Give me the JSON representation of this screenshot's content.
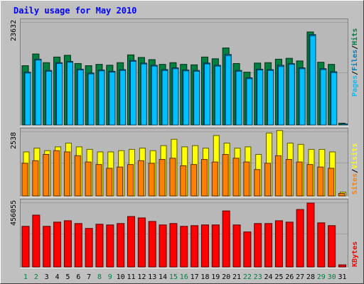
{
  "title": "Daily usage for May 2010",
  "colors": {
    "background": "#c0c0c0",
    "plot_bg": "#b8b8b8",
    "title": "#0000ff",
    "hits": "#008040",
    "files": "#0080c0",
    "pages": "#00c0ff",
    "visits": "#ffff00",
    "sites": "#ff8000",
    "kbytes": "#ff0000",
    "weekend_label": "#008040"
  },
  "chart_data": [
    {
      "type": "bar",
      "panel": "hits-files-pages",
      "categories": [
        "1",
        "2",
        "3",
        "4",
        "5",
        "6",
        "7",
        "8",
        "9",
        "10",
        "11",
        "12",
        "13",
        "14",
        "15",
        "16",
        "17",
        "18",
        "19",
        "20",
        "21",
        "22",
        "23",
        "24",
        "25",
        "26",
        "27",
        "28",
        "29",
        "30",
        "31"
      ],
      "weekend_days": [
        "1",
        "2",
        "8",
        "9",
        "15",
        "16",
        "22",
        "23",
        "29",
        "30"
      ],
      "ymax_label": "23632",
      "ylim": [
        0,
        23632
      ],
      "series": [
        {
          "name": "Hits",
          "values": [
            13700,
            16400,
            14400,
            15700,
            16100,
            14200,
            13700,
            14000,
            13800,
            14400,
            16200,
            15600,
            15100,
            14000,
            14400,
            14000,
            13900,
            15700,
            15300,
            17800,
            14200,
            12200,
            14300,
            14400,
            15200,
            15400,
            14800,
            21500,
            14500,
            14000,
            400
          ]
        },
        {
          "name": "Files",
          "values": [
            12200,
            15200,
            12600,
            14400,
            14700,
            12900,
            12000,
            12700,
            12400,
            12800,
            14900,
            14300,
            13800,
            12800,
            13200,
            12700,
            12600,
            14300,
            13800,
            16300,
            12600,
            10900,
            12900,
            12800,
            13800,
            14200,
            13200,
            20900,
            13000,
            12300,
            250
          ]
        },
        {
          "name": "Pages",
          "values": [
            12000,
            15000,
            12400,
            14200,
            14500,
            12700,
            11800,
            12500,
            12200,
            12600,
            14700,
            14100,
            13600,
            12600,
            13000,
            12500,
            12400,
            14100,
            13600,
            16000,
            12400,
            10700,
            12700,
            12600,
            13500,
            14000,
            13000,
            20600,
            12800,
            12100,
            200
          ]
        }
      ],
      "legend": [
        "Pages",
        "Files",
        "Hits"
      ]
    },
    {
      "type": "bar",
      "panel": "visits-sites",
      "categories": [
        "1",
        "2",
        "3",
        "4",
        "5",
        "6",
        "7",
        "8",
        "9",
        "10",
        "11",
        "12",
        "13",
        "14",
        "15",
        "16",
        "17",
        "18",
        "19",
        "20",
        "21",
        "22",
        "23",
        "24",
        "25",
        "26",
        "27",
        "28",
        "29",
        "30",
        "31"
      ],
      "ymax_label": "2538",
      "ylim": [
        0,
        2538
      ],
      "series": [
        {
          "name": "Visits",
          "values": [
            1750,
            1900,
            1800,
            1950,
            2100,
            1950,
            1850,
            1750,
            1750,
            1800,
            1850,
            1900,
            1800,
            2000,
            2250,
            1950,
            2000,
            1900,
            2400,
            2100,
            1900,
            1950,
            1650,
            2500,
            2600,
            2100,
            2050,
            1850,
            1850,
            1750,
            150
          ]
        },
        {
          "name": "Sites",
          "values": [
            1300,
            1400,
            1650,
            1800,
            1750,
            1600,
            1350,
            1250,
            1100,
            1150,
            1250,
            1400,
            1300,
            1450,
            1500,
            1200,
            1250,
            1450,
            1350,
            1650,
            1500,
            1350,
            1050,
            1300,
            1600,
            1450,
            1350,
            1250,
            1150,
            1100,
            100
          ]
        }
      ],
      "legend": [
        "Sites",
        "Visits"
      ]
    },
    {
      "type": "bar",
      "panel": "kbytes",
      "categories": [
        "1",
        "2",
        "3",
        "4",
        "5",
        "6",
        "7",
        "8",
        "9",
        "10",
        "11",
        "12",
        "13",
        "14",
        "15",
        "16",
        "17",
        "18",
        "19",
        "20",
        "21",
        "22",
        "23",
        "24",
        "25",
        "26",
        "27",
        "28",
        "29",
        "30",
        "31"
      ],
      "ymax_label": "456055",
      "ylim": [
        0,
        456055
      ],
      "series": [
        {
          "name": "KBytes",
          "values": [
            290000,
            370000,
            290000,
            320000,
            330000,
            310000,
            275000,
            305000,
            300000,
            310000,
            360000,
            350000,
            325000,
            300000,
            310000,
            290000,
            295000,
            300000,
            300000,
            400000,
            300000,
            250000,
            310000,
            310000,
            330000,
            320000,
            410000,
            456055,
            315000,
            295000,
            15000
          ]
        }
      ],
      "legend": [
        "KBytes"
      ]
    }
  ]
}
